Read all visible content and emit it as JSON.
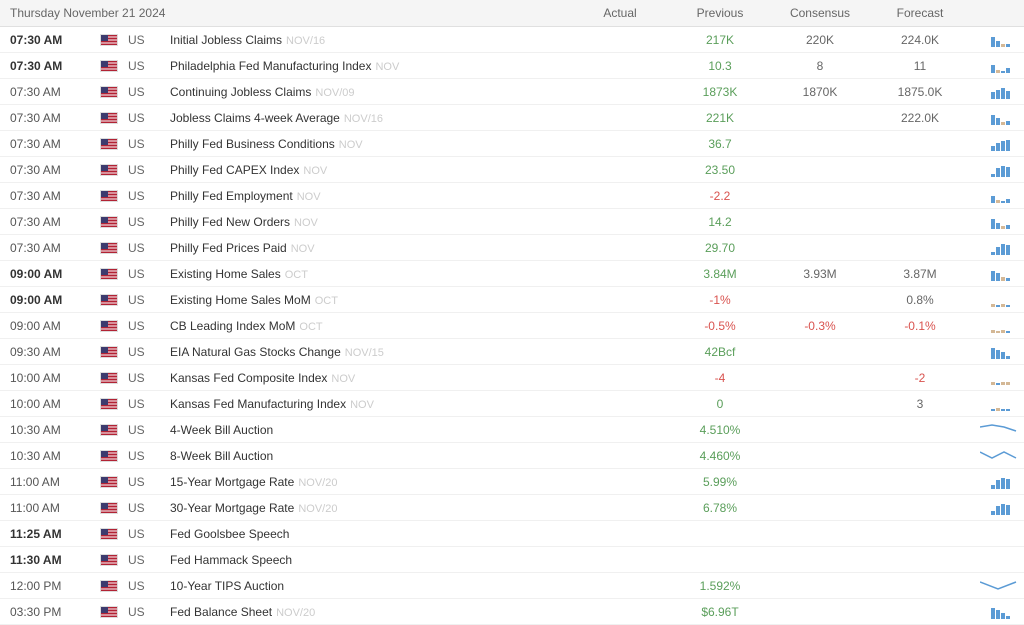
{
  "header": {
    "date": "Thursday November 21 2024",
    "columns": {
      "actual": "Actual",
      "previous": "Previous",
      "consensus": "Consensus",
      "forecast": "Forecast"
    }
  },
  "colors": {
    "positive": "#5a9e5a",
    "negative": "#d9534f",
    "neutral": "#666666",
    "bar_blue": "#5b9bd5",
    "bar_beige": "#d4b896",
    "line_blue": "#5b9bd5",
    "bell": "#cccccc",
    "period": "#cccccc",
    "border": "#f0f0f0",
    "header_bg": "#f5f5f5"
  },
  "events": [
    {
      "time": "07:30 AM",
      "time_bold": true,
      "country": "US",
      "name": "Initial Jobless Claims",
      "period": "NOV/16",
      "actual": "",
      "previous": "217K",
      "consensus": "220K",
      "forecast": "224.0K",
      "chart": {
        "type": "bars",
        "bars": [
          {
            "h": 10,
            "c": "#5b9bd5"
          },
          {
            "h": 6,
            "c": "#5b9bd5"
          },
          {
            "h": 3,
            "c": "#d4b896"
          },
          {
            "h": 3,
            "c": "#5b9bd5"
          }
        ]
      }
    },
    {
      "time": "07:30 AM",
      "time_bold": true,
      "country": "US",
      "name": "Philadelphia Fed Manufacturing Index",
      "period": "NOV",
      "actual": "",
      "previous": "10.3",
      "consensus": "8",
      "forecast": "11",
      "chart": {
        "type": "bars",
        "bars": [
          {
            "h": 8,
            "c": "#5b9bd5"
          },
          {
            "h": 3,
            "c": "#d4b896"
          },
          {
            "h": 2,
            "c": "#5b9bd5"
          },
          {
            "h": 5,
            "c": "#5b9bd5"
          }
        ]
      }
    },
    {
      "time": "07:30 AM",
      "time_bold": false,
      "country": "US",
      "name": "Continuing Jobless Claims",
      "period": "NOV/09",
      "actual": "",
      "previous": "1873K",
      "consensus": "1870K",
      "forecast": "1875.0K",
      "chart": {
        "type": "bars",
        "bars": [
          {
            "h": 7,
            "c": "#5b9bd5"
          },
          {
            "h": 9,
            "c": "#5b9bd5"
          },
          {
            "h": 11,
            "c": "#5b9bd5"
          },
          {
            "h": 8,
            "c": "#5b9bd5"
          }
        ]
      }
    },
    {
      "time": "07:30 AM",
      "time_bold": false,
      "country": "US",
      "name": "Jobless Claims 4-week Average",
      "period": "NOV/16",
      "actual": "",
      "previous": "221K",
      "consensus": "",
      "forecast": "222.0K",
      "chart": {
        "type": "bars",
        "bars": [
          {
            "h": 10,
            "c": "#5b9bd5"
          },
          {
            "h": 7,
            "c": "#5b9bd5"
          },
          {
            "h": 3,
            "c": "#d4b896"
          },
          {
            "h": 4,
            "c": "#5b9bd5"
          }
        ]
      }
    },
    {
      "time": "07:30 AM",
      "time_bold": false,
      "country": "US",
      "name": "Philly Fed Business Conditions",
      "period": "NOV",
      "actual": "",
      "previous": "36.7",
      "consensus": "",
      "forecast": "",
      "chart": {
        "type": "bars",
        "bars": [
          {
            "h": 5,
            "c": "#5b9bd5"
          },
          {
            "h": 8,
            "c": "#5b9bd5"
          },
          {
            "h": 10,
            "c": "#5b9bd5"
          },
          {
            "h": 11,
            "c": "#5b9bd5"
          }
        ]
      }
    },
    {
      "time": "07:30 AM",
      "time_bold": false,
      "country": "US",
      "name": "Philly Fed CAPEX Index",
      "period": "NOV",
      "actual": "",
      "previous": "23.50",
      "consensus": "",
      "forecast": "",
      "chart": {
        "type": "bars",
        "bars": [
          {
            "h": 3,
            "c": "#5b9bd5"
          },
          {
            "h": 9,
            "c": "#5b9bd5"
          },
          {
            "h": 11,
            "c": "#5b9bd5"
          },
          {
            "h": 10,
            "c": "#5b9bd5"
          }
        ]
      }
    },
    {
      "time": "07:30 AM",
      "time_bold": false,
      "country": "US",
      "name": "Philly Fed Employment",
      "period": "NOV",
      "actual": "",
      "previous": "-2.2",
      "prev_neg": true,
      "consensus": "",
      "forecast": "",
      "chart": {
        "type": "bars",
        "bars": [
          {
            "h": 7,
            "c": "#5b9bd5"
          },
          {
            "h": 3,
            "c": "#d4b896"
          },
          {
            "h": 2,
            "c": "#5b9bd5"
          },
          {
            "h": 4,
            "c": "#5b9bd5"
          }
        ]
      }
    },
    {
      "time": "07:30 AM",
      "time_bold": false,
      "country": "US",
      "name": "Philly Fed New Orders",
      "period": "NOV",
      "actual": "",
      "previous": "14.2",
      "consensus": "",
      "forecast": "",
      "chart": {
        "type": "bars",
        "bars": [
          {
            "h": 10,
            "c": "#5b9bd5"
          },
          {
            "h": 6,
            "c": "#5b9bd5"
          },
          {
            "h": 3,
            "c": "#d4b896"
          },
          {
            "h": 4,
            "c": "#5b9bd5"
          }
        ]
      }
    },
    {
      "time": "07:30 AM",
      "time_bold": false,
      "country": "US",
      "name": "Philly Fed Prices Paid",
      "period": "NOV",
      "actual": "",
      "previous": "29.70",
      "consensus": "",
      "forecast": "",
      "chart": {
        "type": "bars",
        "bars": [
          {
            "h": 3,
            "c": "#5b9bd5"
          },
          {
            "h": 8,
            "c": "#5b9bd5"
          },
          {
            "h": 11,
            "c": "#5b9bd5"
          },
          {
            "h": 10,
            "c": "#5b9bd5"
          }
        ]
      }
    },
    {
      "time": "09:00 AM",
      "time_bold": true,
      "country": "US",
      "name": "Existing Home Sales",
      "period": "OCT",
      "actual": "",
      "previous": "3.84M",
      "consensus": "3.93M",
      "forecast": "3.87M",
      "chart": {
        "type": "bars",
        "bars": [
          {
            "h": 10,
            "c": "#5b9bd5"
          },
          {
            "h": 8,
            "c": "#5b9bd5"
          },
          {
            "h": 4,
            "c": "#d4b896"
          },
          {
            "h": 3,
            "c": "#5b9bd5"
          }
        ]
      }
    },
    {
      "time": "09:00 AM",
      "time_bold": true,
      "country": "US",
      "name": "Existing Home Sales MoM",
      "period": "OCT",
      "actual": "",
      "previous": "-1%",
      "prev_neg": true,
      "consensus": "",
      "forecast": "0.8%",
      "chart": {
        "type": "bars",
        "bars": [
          {
            "h": 3,
            "c": "#d4b896"
          },
          {
            "h": 2,
            "c": "#5b9bd5"
          },
          {
            "h": 3,
            "c": "#d4b896"
          },
          {
            "h": 2,
            "c": "#5b9bd5"
          }
        ]
      }
    },
    {
      "time": "09:00 AM",
      "time_bold": false,
      "country": "US",
      "name": "CB Leading Index MoM",
      "period": "OCT",
      "actual": "",
      "previous": "-0.5%",
      "prev_neg": true,
      "consensus": "-0.3%",
      "cons_neg": true,
      "forecast": "-0.1%",
      "fore_neg": true,
      "chart": {
        "type": "bars",
        "bars": [
          {
            "h": 3,
            "c": "#d4b896"
          },
          {
            "h": 2,
            "c": "#d4b896"
          },
          {
            "h": 3,
            "c": "#d4b896"
          },
          {
            "h": 2,
            "c": "#5b9bd5"
          }
        ]
      }
    },
    {
      "time": "09:30 AM",
      "time_bold": false,
      "country": "US",
      "name": "EIA Natural Gas Stocks Change",
      "period": "NOV/15",
      "actual": "",
      "previous": "42Bcf",
      "consensus": "",
      "forecast": "",
      "chart": {
        "type": "bars",
        "bars": [
          {
            "h": 11,
            "c": "#5b9bd5"
          },
          {
            "h": 9,
            "c": "#5b9bd5"
          },
          {
            "h": 7,
            "c": "#5b9bd5"
          },
          {
            "h": 3,
            "c": "#5b9bd5"
          }
        ]
      }
    },
    {
      "time": "10:00 AM",
      "time_bold": false,
      "country": "US",
      "name": "Kansas Fed Composite Index",
      "period": "NOV",
      "actual": "",
      "previous": "-4",
      "prev_neg": true,
      "consensus": "",
      "forecast": "-2",
      "fore_neg": true,
      "chart": {
        "type": "bars",
        "bars": [
          {
            "h": 3,
            "c": "#d4b896"
          },
          {
            "h": 2,
            "c": "#5b9bd5"
          },
          {
            "h": 3,
            "c": "#d4b896"
          },
          {
            "h": 3,
            "c": "#d4b896"
          }
        ]
      }
    },
    {
      "time": "10:00 AM",
      "time_bold": false,
      "country": "US",
      "name": "Kansas Fed Manufacturing Index",
      "period": "NOV",
      "actual": "",
      "previous": "0",
      "consensus": "",
      "forecast": "3",
      "chart": {
        "type": "bars",
        "bars": [
          {
            "h": 2,
            "c": "#5b9bd5"
          },
          {
            "h": 3,
            "c": "#d4b896"
          },
          {
            "h": 2,
            "c": "#5b9bd5"
          },
          {
            "h": 2,
            "c": "#5b9bd5"
          }
        ]
      }
    },
    {
      "time": "10:30 AM",
      "time_bold": false,
      "country": "US",
      "name": "4-Week Bill Auction",
      "period": "",
      "actual": "",
      "previous": "4.510%",
      "consensus": "",
      "forecast": "",
      "chart": {
        "type": "line",
        "points": [
          [
            0,
            4
          ],
          [
            12,
            2
          ],
          [
            24,
            4
          ],
          [
            36,
            8
          ]
        ]
      }
    },
    {
      "time": "10:30 AM",
      "time_bold": false,
      "country": "US",
      "name": "8-Week Bill Auction",
      "period": "",
      "actual": "",
      "previous": "4.460%",
      "consensus": "",
      "forecast": "",
      "chart": {
        "type": "line",
        "points": [
          [
            0,
            3
          ],
          [
            12,
            9
          ],
          [
            24,
            3
          ],
          [
            36,
            9
          ]
        ]
      }
    },
    {
      "time": "11:00 AM",
      "time_bold": false,
      "country": "US",
      "name": "15-Year Mortgage Rate",
      "period": "NOV/20",
      "actual": "",
      "previous": "5.99%",
      "consensus": "",
      "forecast": "",
      "chart": {
        "type": "bars",
        "bars": [
          {
            "h": 4,
            "c": "#5b9bd5"
          },
          {
            "h": 9,
            "c": "#5b9bd5"
          },
          {
            "h": 11,
            "c": "#5b9bd5"
          },
          {
            "h": 10,
            "c": "#5b9bd5"
          }
        ]
      }
    },
    {
      "time": "11:00 AM",
      "time_bold": false,
      "country": "US",
      "name": "30-Year Mortgage Rate",
      "period": "NOV/20",
      "actual": "",
      "previous": "6.78%",
      "consensus": "",
      "forecast": "",
      "chart": {
        "type": "bars",
        "bars": [
          {
            "h": 4,
            "c": "#5b9bd5"
          },
          {
            "h": 9,
            "c": "#5b9bd5"
          },
          {
            "h": 11,
            "c": "#5b9bd5"
          },
          {
            "h": 10,
            "c": "#5b9bd5"
          }
        ]
      }
    },
    {
      "time": "11:25 AM",
      "time_bold": true,
      "country": "US",
      "name": "Fed Goolsbee Speech",
      "period": "",
      "actual": "",
      "previous": "",
      "consensus": "",
      "forecast": "",
      "chart": null
    },
    {
      "time": "11:30 AM",
      "time_bold": true,
      "country": "US",
      "name": "Fed Hammack Speech",
      "period": "",
      "actual": "",
      "previous": "",
      "consensus": "",
      "forecast": "",
      "chart": null
    },
    {
      "time": "12:00 PM",
      "time_bold": false,
      "country": "US",
      "name": "10-Year TIPS Auction",
      "period": "",
      "actual": "",
      "previous": "1.592%",
      "consensus": "",
      "forecast": "",
      "chart": {
        "type": "line",
        "points": [
          [
            0,
            3
          ],
          [
            18,
            10
          ],
          [
            36,
            3
          ]
        ]
      }
    },
    {
      "time": "03:30 PM",
      "time_bold": false,
      "country": "US",
      "name": "Fed Balance Sheet",
      "period": "NOV/20",
      "actual": "",
      "previous": "$6.96T",
      "consensus": "",
      "forecast": "",
      "chart": {
        "type": "bars",
        "bars": [
          {
            "h": 11,
            "c": "#5b9bd5"
          },
          {
            "h": 9,
            "c": "#5b9bd5"
          },
          {
            "h": 6,
            "c": "#5b9bd5"
          },
          {
            "h": 3,
            "c": "#5b9bd5"
          }
        ]
      }
    }
  ]
}
